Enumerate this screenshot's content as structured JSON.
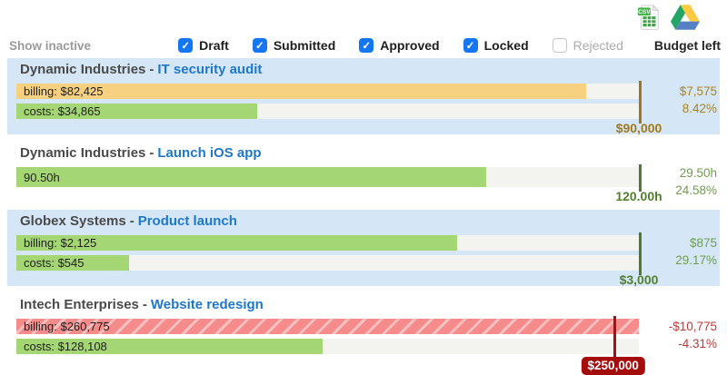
{
  "title_separator": "-",
  "header": {
    "show_inactive_label": "Show inactive",
    "budget_left_label": "Budget left",
    "csv_badge": "CSV",
    "filters": [
      {
        "label": "Draft",
        "checked": true
      },
      {
        "label": "Submitted",
        "checked": true
      },
      {
        "label": "Approved",
        "checked": true
      },
      {
        "label": "Locked",
        "checked": true
      },
      {
        "label": "Rejected",
        "checked": false
      }
    ]
  },
  "theme": {
    "panel_blue": "#d5e7f7",
    "billing_orange": "#f8d180",
    "bar_green": "#a4d773",
    "over_red": "#f68b8b",
    "track_gray": "#f3f3f0",
    "accent_gold": "#a1781c",
    "accent_green": "#527f2f",
    "accent_red": "#a50d0d",
    "link_blue": "#1e78c8",
    "checkbox_blue": "#1476f2"
  },
  "projects": [
    {
      "company": "Dynamic Industries",
      "name": "IT security audit",
      "panel": true,
      "accent": "gold",
      "budget": 90000,
      "budget_label": "$90,000",
      "budget_style": "text",
      "bars": [
        {
          "kind": "billing",
          "label": "billing: $82,425",
          "value": 82425,
          "color": "orange"
        },
        {
          "kind": "costs",
          "label": "costs: $34,865",
          "value": 34865,
          "color": "green"
        }
      ],
      "remaining": "$7,575",
      "remaining_pct": "8.42%"
    },
    {
      "company": "Dynamic Industries",
      "name": "Launch iOS app",
      "panel": false,
      "accent": "green",
      "budget": 120,
      "budget_label": "120.00h",
      "budget_style": "text",
      "bars": [
        {
          "kind": "hours",
          "label": "90.50h",
          "value": 90.5,
          "color": "green"
        }
      ],
      "remaining": "29.50h",
      "remaining_pct": "24.58%"
    },
    {
      "company": "Globex Systems",
      "name": "Product launch",
      "panel": true,
      "accent": "green",
      "budget": 3000,
      "budget_label": "$3,000",
      "budget_style": "text",
      "bars": [
        {
          "kind": "billing",
          "label": "billing: $2,125",
          "value": 2125,
          "color": "green"
        },
        {
          "kind": "costs",
          "label": "costs: $545",
          "value": 545,
          "color": "green"
        }
      ],
      "remaining": "$875",
      "remaining_pct": "29.17%"
    },
    {
      "company": "Intech Enterprises",
      "name": "Website redesign",
      "panel": false,
      "accent": "red",
      "budget": 250000,
      "budget_label": "$250,000",
      "budget_style": "badge",
      "bars": [
        {
          "kind": "billing",
          "label": "billing: $260,775",
          "value": 260775,
          "color": "red-hatch"
        },
        {
          "kind": "costs",
          "label": "costs: $128,108",
          "value": 128108,
          "color": "green"
        }
      ],
      "remaining": "-$10,775",
      "remaining_pct": "-4.31%"
    }
  ]
}
